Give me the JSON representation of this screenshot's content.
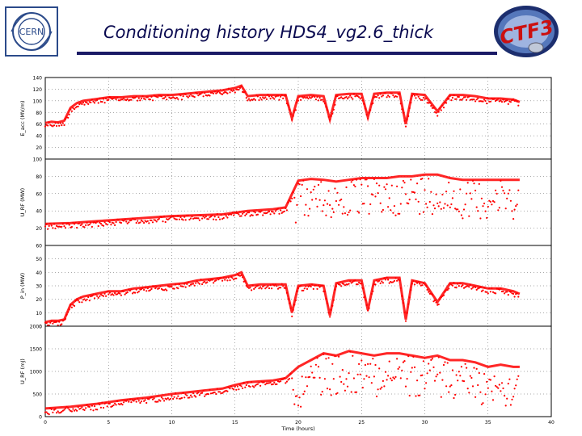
{
  "header": {
    "title": "Conditioning history HDS4_vg2.6_thick",
    "logo_left_text": "CERN",
    "logo_right_text": "CTF3"
  },
  "colors": {
    "data": "#ff0000",
    "title": "#0a0a50",
    "rule": "#1a1a66",
    "logo_blue": "#2b4a8a"
  },
  "chart_data": [
    {
      "type": "scatter",
      "id": "panel-1",
      "title": "",
      "xlabel": "",
      "ylabel": "E_acc (MV/m)",
      "xlim": [
        0,
        40
      ],
      "ylim": [
        0,
        140
      ],
      "yticks": [
        0,
        20,
        40,
        60,
        80,
        100,
        120,
        140
      ],
      "ytick_labels": [
        "",
        "20",
        "40",
        "60",
        "80",
        "100",
        "120",
        "140"
      ],
      "series": [
        {
          "x": [
            0,
            0.5,
            1,
            1.5,
            2,
            2.5,
            3,
            4,
            5,
            6,
            7,
            8,
            9,
            10,
            11,
            12,
            13,
            14,
            15,
            15.5,
            16,
            17,
            18,
            19,
            19.5,
            20,
            21,
            22,
            22.5,
            23,
            24,
            25,
            25.5,
            26,
            27,
            28,
            28.5,
            29,
            30,
            31,
            32,
            33,
            34,
            35,
            36,
            37,
            37.5
          ],
          "y": [
            62,
            64,
            63,
            66,
            88,
            96,
            100,
            103,
            106,
            106,
            108,
            108,
            110,
            110,
            112,
            114,
            116,
            118,
            122,
            126,
            108,
            110,
            110,
            110,
            70,
            108,
            110,
            108,
            68,
            110,
            112,
            112,
            72,
            112,
            114,
            114,
            60,
            112,
            110,
            82,
            110,
            110,
            108,
            104,
            104,
            102,
            98
          ]
        }
      ]
    },
    {
      "type": "scatter",
      "id": "panel-2",
      "title": "",
      "xlabel": "",
      "ylabel": "U_RF (MW)",
      "xlim": [
        0,
        40
      ],
      "ylim": [
        0,
        100
      ],
      "yticks": [
        0,
        20,
        40,
        60,
        80,
        100
      ],
      "ytick_labels": [
        "",
        "20",
        "40",
        "60",
        "80",
        "100"
      ],
      "series": [
        {
          "x": [
            0,
            2,
            4,
            6,
            8,
            10,
            12,
            14,
            15,
            16,
            18,
            19,
            20,
            21,
            22,
            23,
            24,
            25,
            26,
            27,
            28,
            29,
            30,
            31,
            32,
            33,
            34,
            35,
            36,
            37,
            37.5
          ],
          "y": [
            25,
            26,
            28,
            30,
            32,
            34,
            35,
            36,
            38,
            40,
            42,
            44,
            75,
            77,
            76,
            74,
            76,
            78,
            78,
            78,
            80,
            80,
            82,
            82,
            78,
            76,
            76,
            76,
            76,
            76,
            76
          ]
        }
      ]
    },
    {
      "type": "scatter",
      "id": "panel-3",
      "title": "",
      "xlabel": "",
      "ylabel": "P_in (MW)",
      "xlim": [
        0,
        40
      ],
      "ylim": [
        0,
        60
      ],
      "yticks": [
        0,
        10,
        20,
        30,
        40,
        50,
        60
      ],
      "ytick_labels": [
        "0",
        "10",
        "20",
        "30",
        "40",
        "50",
        "60"
      ],
      "series": [
        {
          "x": [
            0,
            0.5,
            1,
            1.5,
            2,
            2.5,
            3,
            4,
            5,
            6,
            7,
            8,
            9,
            10,
            11,
            12,
            13,
            14,
            15,
            15.5,
            16,
            17,
            18,
            19,
            19.5,
            20,
            21,
            22,
            22.5,
            23,
            24,
            25,
            25.5,
            26,
            27,
            28,
            28.5,
            29,
            30,
            31,
            32,
            33,
            34,
            35,
            36,
            37,
            37.5
          ],
          "y": [
            3,
            4,
            4,
            5,
            16,
            20,
            22,
            24,
            26,
            26,
            28,
            29,
            30,
            31,
            32,
            34,
            35,
            36,
            38,
            40,
            30,
            31,
            31,
            31,
            10,
            30,
            31,
            30,
            8,
            32,
            34,
            34,
            12,
            34,
            36,
            36,
            5,
            34,
            32,
            18,
            32,
            32,
            30,
            28,
            28,
            26,
            24
          ]
        }
      ]
    },
    {
      "type": "scatter",
      "id": "panel-4",
      "title": "",
      "xlabel": "Time (hours)",
      "ylabel": "U_RF (mJ)",
      "xlim": [
        0,
        40
      ],
      "ylim": [
        0,
        2000
      ],
      "yticks": [
        0,
        500,
        1000,
        1500,
        2000
      ],
      "ytick_labels": [
        "0",
        "500",
        "1000",
        "1500",
        "2000"
      ],
      "xticks": [
        0,
        5,
        10,
        15,
        20,
        25,
        30,
        35,
        40
      ],
      "xtick_labels": [
        "0",
        "5",
        "10",
        "15",
        "20",
        "25",
        "30",
        "35",
        "40"
      ],
      "series": [
        {
          "x": [
            0,
            2,
            4,
            6,
            8,
            10,
            12,
            14,
            15,
            16,
            18,
            19,
            20,
            21,
            22,
            23,
            24,
            25,
            26,
            27,
            28,
            29,
            30,
            31,
            32,
            33,
            34,
            35,
            36,
            37,
            37.5
          ],
          "y": [
            180,
            220,
            280,
            360,
            420,
            500,
            560,
            620,
            700,
            760,
            800,
            850,
            1100,
            1250,
            1400,
            1350,
            1450,
            1400,
            1350,
            1400,
            1400,
            1350,
            1300,
            1350,
            1250,
            1250,
            1200,
            1100,
            1150,
            1100,
            1100
          ]
        }
      ]
    }
  ]
}
